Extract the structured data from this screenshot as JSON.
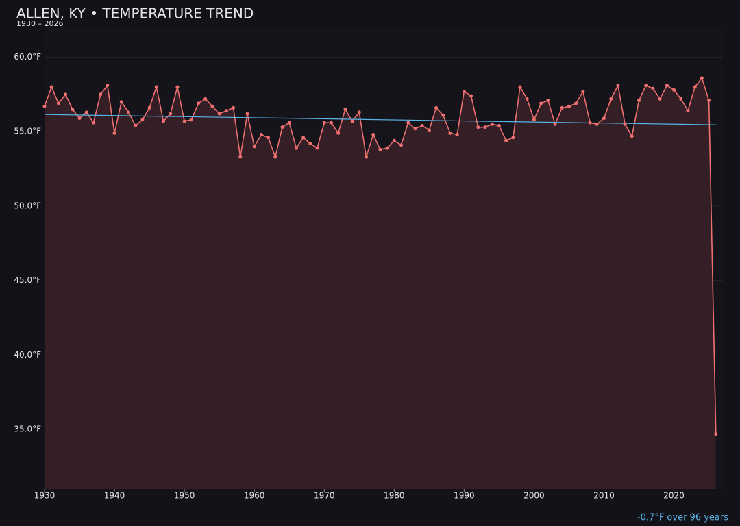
{
  "chart_data": {
    "type": "line",
    "title": "ALLEN, KY • TEMPERATURE TREND",
    "subtitle": "1930 – 2026",
    "annotation": "-0.7°F over 96 years",
    "color": "#f07070",
    "fill": "#331f25",
    "grid": true,
    "x": [
      1930,
      1931,
      1932,
      1933,
      1934,
      1935,
      1936,
      1937,
      1938,
      1939,
      1940,
      1941,
      1942,
      1943,
      1944,
      1945,
      1946,
      1947,
      1948,
      1949,
      1950,
      1951,
      1952,
      1953,
      1954,
      1955,
      1956,
      1957,
      1958,
      1959,
      1960,
      1961,
      1962,
      1963,
      1964,
      1965,
      1966,
      1967,
      1968,
      1969,
      1970,
      1971,
      1972,
      1973,
      1974,
      1975,
      1976,
      1977,
      1978,
      1979,
      1980,
      1981,
      1982,
      1983,
      1984,
      1985,
      1986,
      1987,
      1988,
      1989,
      1990,
      1991,
      1992,
      1993,
      1994,
      1995,
      1996,
      1997,
      1998,
      1999,
      2000,
      2001,
      2002,
      2003,
      2004,
      2005,
      2006,
      2007,
      2008,
      2009,
      2010,
      2011,
      2012,
      2013,
      2014,
      2015,
      2016,
      2017,
      2018,
      2019,
      2020,
      2021,
      2022,
      2023,
      2024,
      2025,
      2026
    ],
    "values": [
      56.7,
      58.0,
      56.9,
      57.5,
      56.5,
      55.9,
      56.3,
      55.6,
      57.5,
      58.1,
      54.9,
      57.0,
      56.3,
      55.4,
      55.8,
      56.6,
      58.0,
      55.7,
      56.2,
      58.0,
      55.7,
      55.8,
      56.9,
      57.2,
      56.7,
      56.2,
      56.4,
      56.6,
      53.3,
      56.2,
      54.0,
      54.8,
      54.6,
      53.3,
      55.3,
      55.6,
      53.9,
      54.6,
      54.2,
      53.9,
      55.6,
      55.6,
      54.9,
      56.5,
      55.7,
      56.3,
      53.3,
      54.8,
      53.8,
      53.9,
      54.4,
      54.1,
      55.6,
      55.2,
      55.4,
      55.1,
      56.6,
      56.1,
      54.9,
      54.8,
      57.7,
      57.4,
      55.3,
      55.3,
      55.5,
      55.4,
      54.4,
      54.6,
      58.0,
      57.2,
      55.8,
      56.9,
      57.1,
      55.5,
      56.6,
      56.7,
      56.9,
      57.7,
      55.6,
      55.5,
      55.9,
      57.2,
      58.1,
      55.5,
      54.7,
      57.1,
      58.1,
      57.9,
      57.2,
      58.1,
      57.8,
      57.2,
      56.4,
      58.0,
      58.6,
      57.1,
      34.7
    ],
    "trend": {
      "x": [
        1930,
        2026
      ],
      "values": [
        56.15,
        55.46
      ],
      "color": "#5ab4e8"
    },
    "xlim": [
      1930,
      2027
    ],
    "ylim": [
      31,
      62
    ],
    "xticks": [
      1930,
      1940,
      1950,
      1960,
      1970,
      1980,
      1990,
      2000,
      2010,
      2020
    ],
    "yticks": [
      {
        "value": 35,
        "label": "35.0°F"
      },
      {
        "value": 40,
        "label": "40.0°F"
      },
      {
        "value": 45,
        "label": "45.0°F"
      },
      {
        "value": 50,
        "label": "50.0°F"
      },
      {
        "value": 55,
        "label": "55.0°F"
      },
      {
        "value": 60,
        "label": "60.0°F"
      }
    ]
  }
}
